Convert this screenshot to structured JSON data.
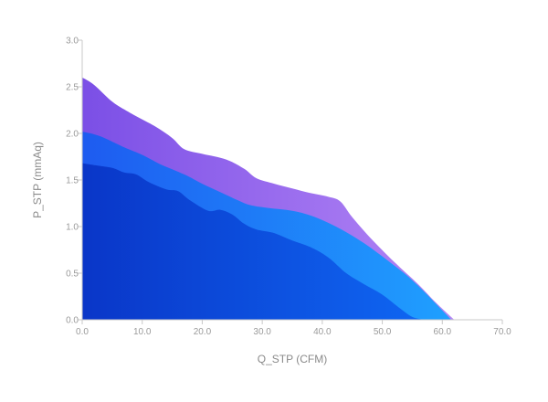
{
  "chart_data": {
    "type": "area",
    "xlabel": "Q_STP (CFM)",
    "ylabel": "P_STP (mmAq)",
    "xlim": [
      0,
      70
    ],
    "ylim": [
      0,
      3
    ],
    "x_ticks": [
      "0.0",
      "10.0",
      "20.0",
      "30.0",
      "40.0",
      "50.0",
      "60.0",
      "70.0"
    ],
    "y_ticks": [
      "0.0",
      "0.5",
      "1.0",
      "1.5",
      "2.0",
      "2.5",
      "3.0"
    ],
    "grid": false,
    "series": [
      {
        "color_start": "#7b4fe6",
        "color_end": "#b486f5",
        "points": [
          [
            0,
            2.6
          ],
          [
            2,
            2.52
          ],
          [
            5,
            2.34
          ],
          [
            8,
            2.22
          ],
          [
            12,
            2.08
          ],
          [
            15,
            1.95
          ],
          [
            17,
            1.83
          ],
          [
            20,
            1.78
          ],
          [
            24,
            1.72
          ],
          [
            27,
            1.62
          ],
          [
            29,
            1.52
          ],
          [
            32,
            1.46
          ],
          [
            35,
            1.41
          ],
          [
            38,
            1.36
          ],
          [
            41,
            1.32
          ],
          [
            43,
            1.27
          ],
          [
            45,
            1.1
          ],
          [
            48,
            0.88
          ],
          [
            52,
            0.62
          ],
          [
            56,
            0.38
          ],
          [
            59,
            0.18
          ],
          [
            62,
            0.0
          ]
        ]
      },
      {
        "color_start": "#1e5bf0",
        "color_end": "#1fa0ff",
        "points": [
          [
            0,
            2.02
          ],
          [
            3,
            1.97
          ],
          [
            7,
            1.85
          ],
          [
            10,
            1.77
          ],
          [
            13,
            1.67
          ],
          [
            17,
            1.56
          ],
          [
            20,
            1.46
          ],
          [
            23,
            1.37
          ],
          [
            26,
            1.28
          ],
          [
            28,
            1.23
          ],
          [
            31,
            1.2
          ],
          [
            35,
            1.17
          ],
          [
            38,
            1.12
          ],
          [
            41,
            1.04
          ],
          [
            44,
            0.94
          ],
          [
            47,
            0.82
          ],
          [
            50,
            0.68
          ],
          [
            54,
            0.48
          ],
          [
            57,
            0.3
          ],
          [
            60,
            0.1
          ],
          [
            61.5,
            0.0
          ]
        ]
      },
      {
        "color_start": "#0a36c8",
        "color_end": "#0f66f2",
        "points": [
          [
            0,
            1.68
          ],
          [
            2,
            1.66
          ],
          [
            5,
            1.63
          ],
          [
            7,
            1.58
          ],
          [
            9,
            1.56
          ],
          [
            11,
            1.48
          ],
          [
            14,
            1.4
          ],
          [
            16,
            1.38
          ],
          [
            18,
            1.28
          ],
          [
            21,
            1.17
          ],
          [
            23,
            1.18
          ],
          [
            25,
            1.13
          ],
          [
            27,
            1.03
          ],
          [
            29,
            0.97
          ],
          [
            32,
            0.93
          ],
          [
            35,
            0.85
          ],
          [
            38,
            0.78
          ],
          [
            41,
            0.67
          ],
          [
            44,
            0.5
          ],
          [
            47,
            0.38
          ],
          [
            50,
            0.27
          ],
          [
            53,
            0.12
          ],
          [
            55,
            0.03
          ],
          [
            57,
            0.0
          ]
        ]
      }
    ]
  }
}
